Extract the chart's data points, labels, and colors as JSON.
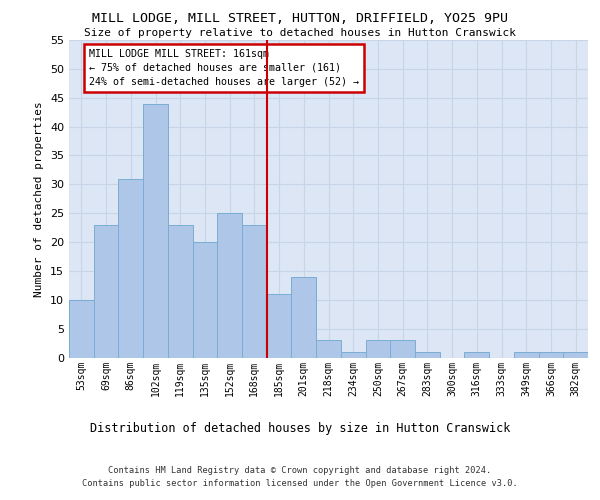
{
  "title": "MILL LODGE, MILL STREET, HUTTON, DRIFFIELD, YO25 9PU",
  "subtitle": "Size of property relative to detached houses in Hutton Cranswick",
  "xlabel": "Distribution of detached houses by size in Hutton Cranswick",
  "ylabel": "Number of detached properties",
  "footer1": "Contains HM Land Registry data © Crown copyright and database right 2024.",
  "footer2": "Contains public sector information licensed under the Open Government Licence v3.0.",
  "categories": [
    "53sqm",
    "69sqm",
    "86sqm",
    "102sqm",
    "119sqm",
    "135sqm",
    "152sqm",
    "168sqm",
    "185sqm",
    "201sqm",
    "218sqm",
    "234sqm",
    "250sqm",
    "267sqm",
    "283sqm",
    "300sqm",
    "316sqm",
    "333sqm",
    "349sqm",
    "366sqm",
    "382sqm"
  ],
  "values": [
    10,
    23,
    31,
    44,
    23,
    20,
    25,
    23,
    11,
    14,
    3,
    1,
    3,
    3,
    1,
    0,
    1,
    0,
    1,
    1,
    1
  ],
  "bar_color": "#aec6e8",
  "bar_edge_color": "#7aadd4",
  "grid_color": "#c8d4e8",
  "bg_color": "#dce6f5",
  "vline_x": 7.5,
  "vline_color": "#cc0000",
  "annotation_text": "MILL LODGE MILL STREET: 161sqm\n← 75% of detached houses are smaller (161)\n24% of semi-detached houses are larger (52) →",
  "annotation_box_color": "#cc0000",
  "ylim": [
    0,
    55
  ],
  "yticks": [
    0,
    5,
    10,
    15,
    20,
    25,
    30,
    35,
    40,
    45,
    50,
    55
  ]
}
